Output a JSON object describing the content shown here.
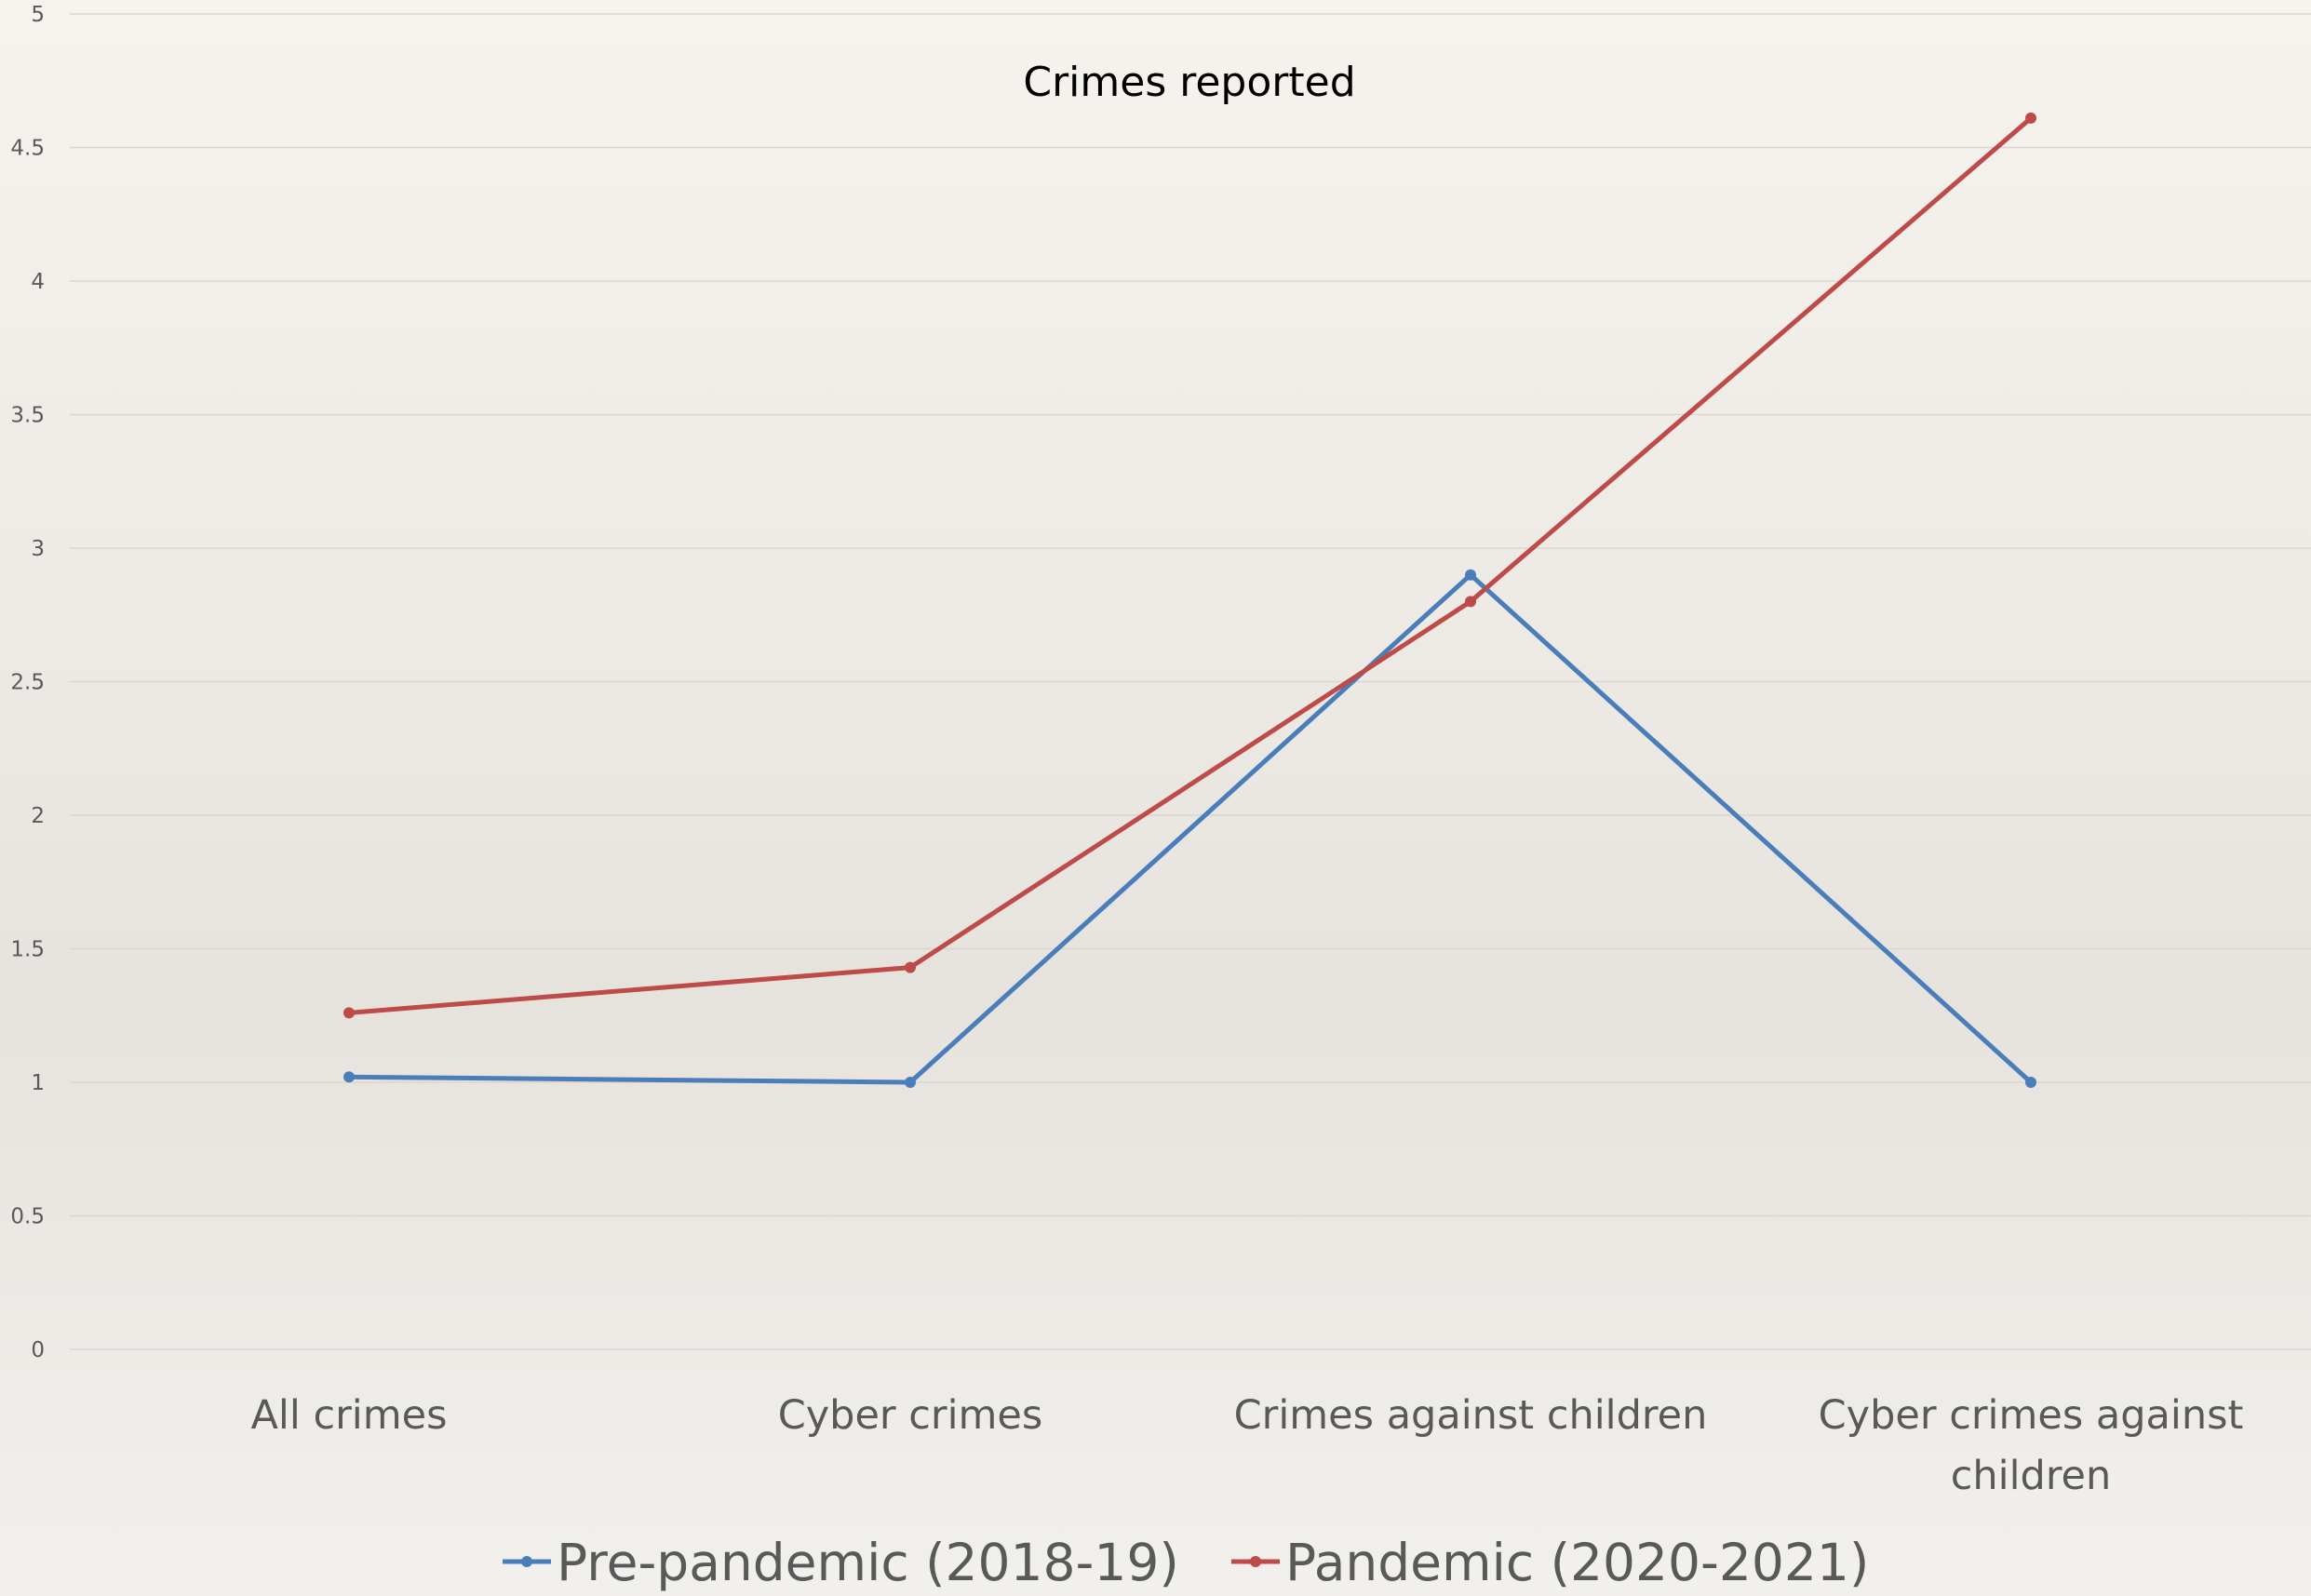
{
  "chart_data": {
    "type": "line",
    "title": "Crimes reported",
    "xlabel": "",
    "ylabel": "",
    "categories": [
      [
        "All crimes"
      ],
      [
        "Cyber crimes"
      ],
      [
        "Crimes against children"
      ],
      [
        "Cyber crimes against",
        "children"
      ]
    ],
    "ylim": [
      0,
      5
    ],
    "yticks": [
      "0",
      "0.5",
      "1",
      "1.5",
      "2",
      "2.5",
      "3",
      "3.5",
      "4",
      "4.5",
      "5"
    ],
    "grid": true,
    "legend_position": "bottom",
    "series": [
      {
        "name": "Pre-pandemic (2018-19)",
        "color": "#4a7ebb",
        "values": [
          1.02,
          1.0,
          2.9,
          1.0
        ]
      },
      {
        "name": "Pandemic (2020-2021)",
        "color": "#be4b48",
        "values": [
          1.26,
          1.43,
          2.8,
          4.61
        ]
      }
    ]
  }
}
